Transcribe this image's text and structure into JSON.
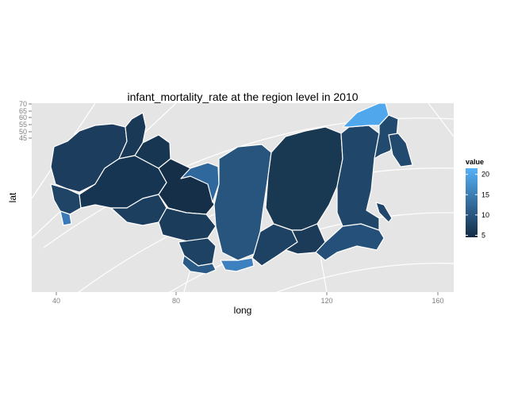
{
  "chart_data": {
    "type": "choropleth-map",
    "title": "infant_mortality_rate at the region level in 2010",
    "xlabel": "long",
    "ylabel": "lat",
    "x_ticks": [
      40,
      80,
      120,
      160
    ],
    "y_ticks": [
      45,
      50,
      55,
      60,
      65,
      70
    ],
    "grid": true,
    "background": "#e5e5e5",
    "region_border_color": "#ffffff",
    "legend": {
      "title": "value",
      "placement": "right",
      "ticks": [
        5,
        10,
        15,
        20
      ],
      "range": [
        4.5,
        21.5
      ],
      "color_low": "#132b43",
      "color_high": "#56b1f7"
    }
  }
}
